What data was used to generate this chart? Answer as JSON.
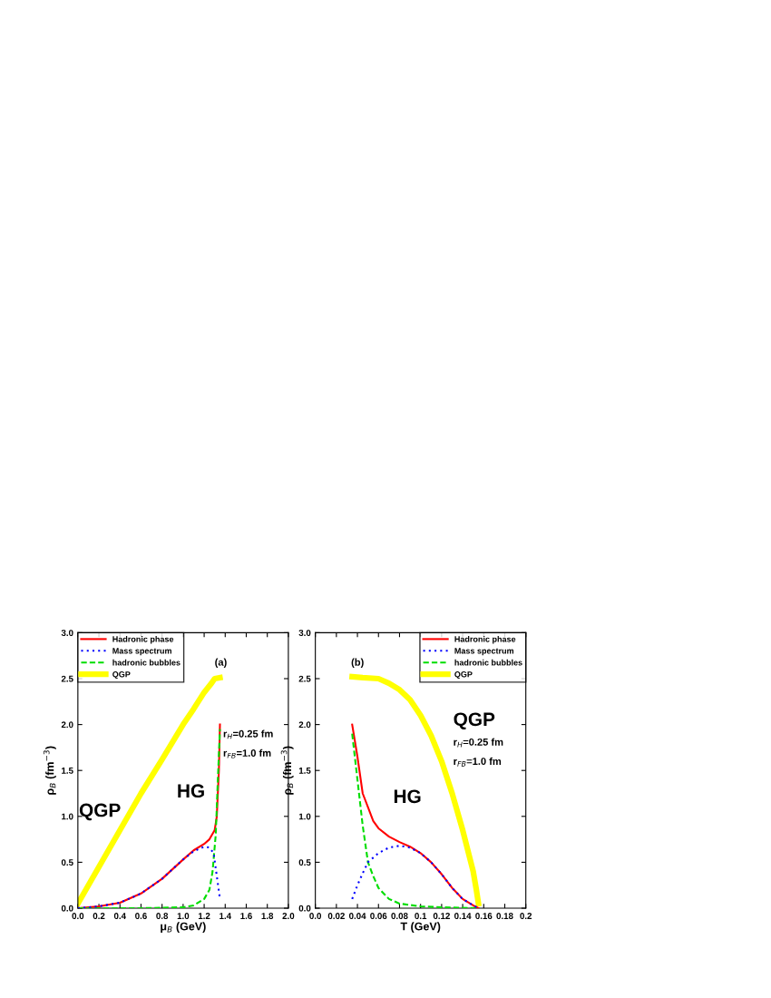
{
  "chart_data": [
    {
      "type": "line",
      "xlabel": "μ$_{B}$ (GeV)",
      "ylabel": "ρ$_{B}$ (fm$^{−3}$)",
      "legend": "top left",
      "grid": false,
      "xlim": [
        0,
        2
      ],
      "xticks": [
        {
          "value": 0,
          "label": "0.0"
        },
        {
          "value": 0.2,
          "label": "0.2"
        },
        {
          "value": 0.4,
          "label": "0.4"
        },
        {
          "value": 0.6,
          "label": "0.6"
        },
        {
          "value": 0.8,
          "label": "0.8"
        },
        {
          "value": 1.0,
          "label": "1.0"
        },
        {
          "value": 1.2,
          "label": "1.2"
        },
        {
          "value": 1.4,
          "label": "1.4"
        },
        {
          "value": 1.6,
          "label": "1.6"
        },
        {
          "value": 1.8,
          "label": "1.8"
        },
        {
          "value": 2.0,
          "label": "2.0"
        }
      ],
      "ylim": [
        0,
        3
      ],
      "yticks": [
        {
          "value": 0,
          "label": "0.0"
        },
        {
          "value": 0.5,
          "label": "0.5"
        },
        {
          "value": 1.0,
          "label": "1.0"
        },
        {
          "value": 1.5,
          "label": "1.5"
        },
        {
          "value": 2.0,
          "label": "2.0"
        },
        {
          "value": 2.5,
          "label": "2.5"
        },
        {
          "value": 3.0,
          "label": "3.0"
        }
      ],
      "series": [
        {
          "name": "Hadronic phase",
          "color": "#ff0000",
          "line_style": "solid",
          "x": [
            0,
            0.2,
            0.4,
            0.6,
            0.8,
            1.0,
            1.1,
            1.2,
            1.25,
            1.3,
            1.32,
            1.34,
            1.35
          ],
          "values": [
            0,
            0.02,
            0.06,
            0.16,
            0.32,
            0.53,
            0.63,
            0.7,
            0.75,
            0.85,
            1.0,
            1.5,
            2.0
          ]
        },
        {
          "name": "Mass spectrum",
          "color": "#0000ff",
          "line_style": "dotted",
          "x": [
            0,
            0.2,
            0.4,
            0.6,
            0.8,
            1.0,
            1.1,
            1.2,
            1.25,
            1.29,
            1.32,
            1.35
          ],
          "values": [
            0,
            0.02,
            0.06,
            0.16,
            0.32,
            0.53,
            0.62,
            0.67,
            0.66,
            0.6,
            0.35,
            0.1
          ]
        },
        {
          "name": "hadronic bubbles",
          "color": "#00dd00",
          "line_style": "dashed",
          "x": [
            0,
            0.6,
            1.0,
            1.1,
            1.2,
            1.25,
            1.28,
            1.31,
            1.33,
            1.35
          ],
          "values": [
            0,
            0,
            0.01,
            0.03,
            0.1,
            0.2,
            0.4,
            0.8,
            1.4,
            1.95
          ]
        },
        {
          "name": "QGP",
          "color": "#ffff00",
          "line_style": "solid",
          "x": [
            0,
            0.2,
            0.4,
            0.6,
            0.8,
            1.0,
            1.1,
            1.2,
            1.27,
            1.3,
            1.35
          ],
          "values": [
            0.05,
            0.45,
            0.85,
            1.25,
            1.62,
            2.0,
            2.17,
            2.35,
            2.45,
            2.5,
            2.51
          ]
        }
      ],
      "annotations": [
        "(a)",
        "QGP",
        "HG",
        "r$_{H}$=0.25 fm",
        "r$_{FB}$=1.0 fm"
      ]
    },
    {
      "type": "line",
      "xlabel": "T (GeV)",
      "ylabel": "ρ$_{B}$ (fm$^{−3}$)",
      "legend": "top right",
      "grid": false,
      "xlim": [
        0,
        0.2
      ],
      "xticks": [
        {
          "value": 0,
          "label": "0.0"
        },
        {
          "value": 0.02,
          "label": "0.02"
        },
        {
          "value": 0.04,
          "label": "0.04"
        },
        {
          "value": 0.06,
          "label": "0.06"
        },
        {
          "value": 0.08,
          "label": "0.08"
        },
        {
          "value": 0.1,
          "label": "0.1"
        },
        {
          "value": 0.12,
          "label": "0.12"
        },
        {
          "value": 0.14,
          "label": "0.14"
        },
        {
          "value": 0.16,
          "label": "0.16"
        },
        {
          "value": 0.18,
          "label": "0.18"
        },
        {
          "value": 0.2,
          "label": "0.2"
        }
      ],
      "ylim": [
        0,
        3
      ],
      "yticks": [
        {
          "value": 0,
          "label": "0.0"
        },
        {
          "value": 0.5,
          "label": "0.5"
        },
        {
          "value": 1.0,
          "label": "1.0"
        },
        {
          "value": 1.5,
          "label": "1.5"
        },
        {
          "value": 2.0,
          "label": "2.0"
        },
        {
          "value": 2.5,
          "label": "2.5"
        },
        {
          "value": 3.0,
          "label": "3.0"
        }
      ],
      "series": [
        {
          "name": "Hadronic phase",
          "color": "#ff0000",
          "line_style": "solid",
          "x": [
            0.035,
            0.04,
            0.045,
            0.05,
            0.055,
            0.06,
            0.07,
            0.08,
            0.09,
            0.1,
            0.11,
            0.12,
            0.13,
            0.14,
            0.15,
            0.155
          ],
          "values": [
            2.0,
            1.65,
            1.25,
            1.1,
            0.95,
            0.87,
            0.78,
            0.72,
            0.67,
            0.6,
            0.5,
            0.37,
            0.22,
            0.1,
            0.03,
            0
          ]
        },
        {
          "name": "Mass spectrum",
          "color": "#0000ff",
          "line_style": "dotted",
          "x": [
            0.035,
            0.04,
            0.045,
            0.05,
            0.06,
            0.07,
            0.08,
            0.09,
            0.1,
            0.11,
            0.12,
            0.13,
            0.14,
            0.15,
            0.155
          ],
          "values": [
            0.1,
            0.25,
            0.38,
            0.5,
            0.6,
            0.66,
            0.68,
            0.66,
            0.6,
            0.5,
            0.37,
            0.22,
            0.1,
            0.03,
            0
          ]
        },
        {
          "name": "hadronic bubbles",
          "color": "#00dd00",
          "line_style": "dashed",
          "x": [
            0.035,
            0.04,
            0.045,
            0.05,
            0.055,
            0.06,
            0.07,
            0.08,
            0.1,
            0.12,
            0.155
          ],
          "values": [
            1.9,
            1.4,
            0.9,
            0.5,
            0.35,
            0.22,
            0.1,
            0.05,
            0.02,
            0.01,
            0
          ]
        },
        {
          "name": "QGP",
          "color": "#ffff00",
          "line_style": "solid",
          "x": [
            0.035,
            0.045,
            0.06,
            0.07,
            0.08,
            0.09,
            0.1,
            0.11,
            0.12,
            0.13,
            0.14,
            0.15,
            0.153,
            0.155
          ],
          "values": [
            2.52,
            2.51,
            2.5,
            2.45,
            2.38,
            2.27,
            2.1,
            1.88,
            1.6,
            1.25,
            0.85,
            0.4,
            0.2,
            0.05
          ]
        }
      ],
      "annotations": [
        "(b)",
        "QGP",
        "HG",
        "r$_{H}$=0.25 fm",
        "r$_{FB}$=1.0 fm"
      ]
    }
  ]
}
